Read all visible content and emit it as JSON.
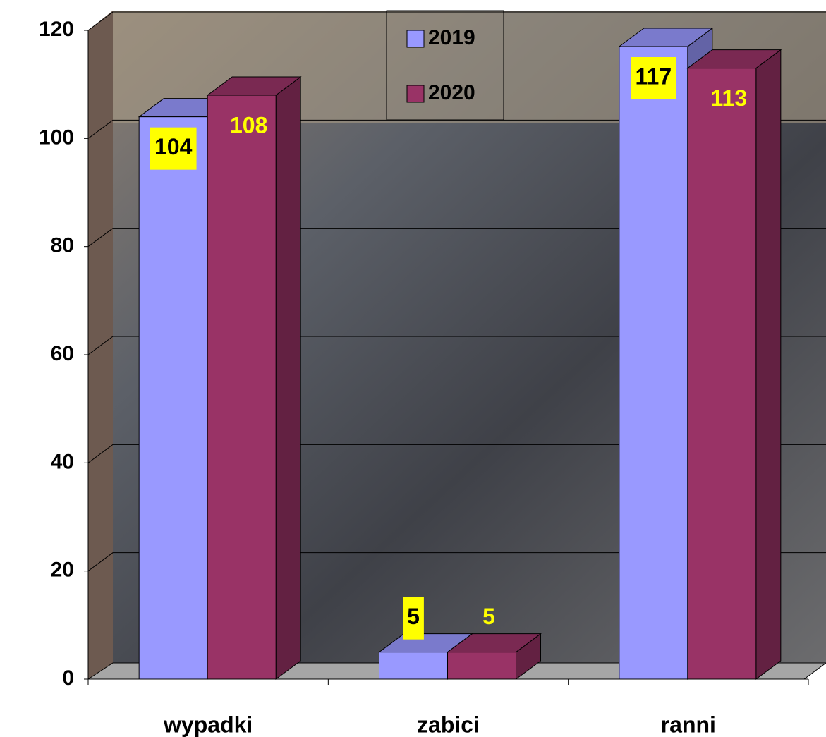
{
  "chart_data": {
    "type": "bar3d",
    "categories": [
      "wypadki",
      "zabici",
      "ranni"
    ],
    "series": [
      {
        "name": "2019",
        "color": "#9999ff",
        "values": [
          104,
          5,
          117
        ]
      },
      {
        "name": "2020",
        "color": "#993366",
        "values": [
          108,
          5,
          113
        ]
      }
    ],
    "ylim": [
      0,
      120
    ],
    "yticks": [
      0,
      20,
      40,
      60,
      80,
      100,
      120
    ],
    "grid": true,
    "legend": "top"
  }
}
